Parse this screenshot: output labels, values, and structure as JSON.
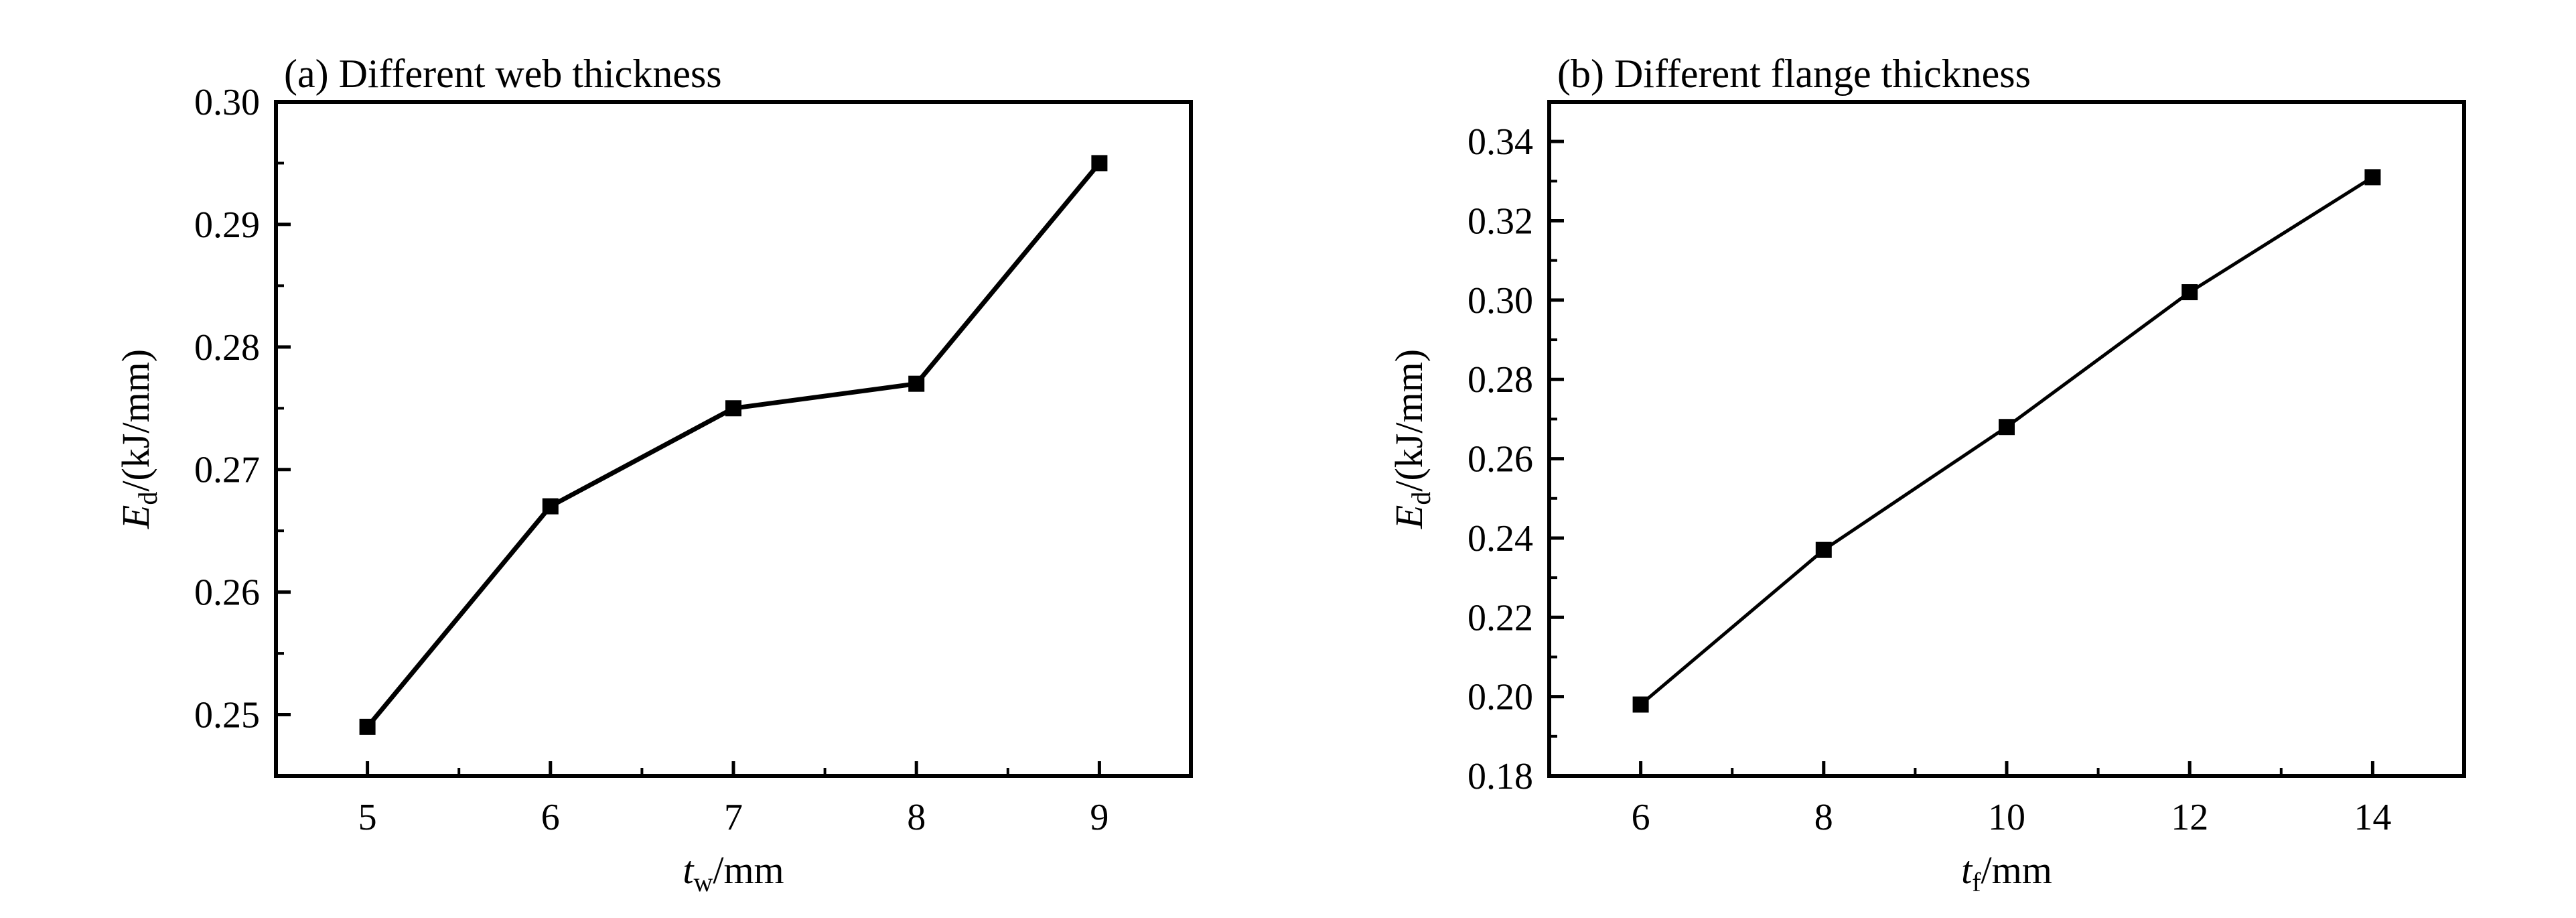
{
  "chart_data": [
    {
      "type": "line",
      "title": "(a) Different web thickness",
      "xlabel": {
        "symbol": "t",
        "subscript": "w",
        "unit": "/mm"
      },
      "ylabel": {
        "symbol": "E",
        "subscript": "d",
        "unit": "/(kJ/mm)"
      },
      "xlim": [
        4.5,
        9.5
      ],
      "ylim": [
        0.245,
        0.3
      ],
      "xticks": [
        5,
        6,
        7,
        8,
        9
      ],
      "xtick_labels": [
        "5",
        "6",
        "7",
        "8",
        "9"
      ],
      "yticks": [
        0.25,
        0.26,
        0.27,
        0.28,
        0.29,
        0.3
      ],
      "ytick_labels": [
        "0.25",
        "0.26",
        "0.27",
        "0.28",
        "0.29",
        "0.30"
      ],
      "grid": false,
      "marker": "square",
      "color": "#000000",
      "x": [
        5,
        6,
        7,
        8,
        9
      ],
      "y": [
        0.249,
        0.267,
        0.275,
        0.277,
        0.295
      ]
    },
    {
      "type": "line",
      "title": "(b) Different flange thickness",
      "xlabel": {
        "symbol": "t",
        "subscript": "f",
        "unit": "/mm"
      },
      "ylabel": {
        "symbol": "E",
        "subscript": "d",
        "unit": "/(kJ/mm)"
      },
      "xlim": [
        5,
        15
      ],
      "ylim": [
        0.18,
        0.35
      ],
      "xticks": [
        6,
        8,
        10,
        12,
        14
      ],
      "xtick_labels": [
        "6",
        "8",
        "10",
        "12",
        "14"
      ],
      "yticks": [
        0.18,
        0.2,
        0.22,
        0.24,
        0.26,
        0.28,
        0.3,
        0.32,
        0.34
      ],
      "ytick_labels": [
        "0.18",
        "0.20",
        "0.22",
        "0.24",
        "0.26",
        "0.28",
        "0.30",
        "0.32",
        "0.34"
      ],
      "grid": false,
      "marker": "square",
      "color": "#000000",
      "x": [
        6,
        8,
        10,
        12,
        14
      ],
      "y": [
        0.198,
        0.237,
        0.268,
        0.302,
        0.331
      ]
    }
  ]
}
